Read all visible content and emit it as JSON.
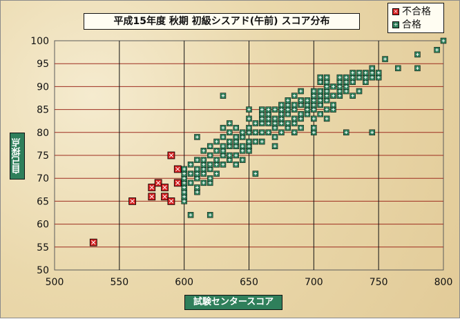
{
  "chart_data": {
    "type": "scatter",
    "title": "平成15年度 秋期 初級シスアド(午前) スコア分布",
    "xlabel": "試験センタースコア",
    "ylabel": "自己採点",
    "xlim": [
      500,
      800
    ],
    "ylim": [
      50,
      100
    ],
    "xticks": [
      500,
      550,
      600,
      650,
      700,
      750,
      800
    ],
    "yticks": [
      50,
      55,
      60,
      65,
      70,
      75,
      80,
      85,
      90,
      95,
      100
    ],
    "grid": true,
    "legend_position": "top-right",
    "series": [
      {
        "name": "不合格",
        "color": "#d42020",
        "points": [
          [
            530,
            56
          ],
          [
            560,
            65
          ],
          [
            575,
            68
          ],
          [
            575,
            66
          ],
          [
            580,
            69
          ],
          [
            585,
            68
          ],
          [
            585,
            66
          ],
          [
            590,
            65
          ],
          [
            590,
            75
          ],
          [
            595,
            72
          ],
          [
            595,
            69
          ]
        ]
      },
      {
        "name": "合格",
        "color": "#2f7f5b",
        "points": [
          [
            600,
            65
          ],
          [
            600,
            66
          ],
          [
            600,
            67
          ],
          [
            600,
            68
          ],
          [
            600,
            69
          ],
          [
            600,
            70
          ],
          [
            600,
            71
          ],
          [
            600,
            72
          ],
          [
            605,
            62
          ],
          [
            605,
            69
          ],
          [
            605,
            71
          ],
          [
            605,
            73
          ],
          [
            610,
            67
          ],
          [
            610,
            68
          ],
          [
            610,
            70
          ],
          [
            610,
            71
          ],
          [
            610,
            72
          ],
          [
            610,
            74
          ],
          [
            610,
            79
          ],
          [
            615,
            69
          ],
          [
            615,
            71
          ],
          [
            615,
            72
          ],
          [
            615,
            73
          ],
          [
            615,
            74
          ],
          [
            615,
            76
          ],
          [
            620,
            62
          ],
          [
            620,
            69
          ],
          [
            620,
            70
          ],
          [
            620,
            72
          ],
          [
            620,
            73
          ],
          [
            620,
            75
          ],
          [
            620,
            77
          ],
          [
            625,
            71
          ],
          [
            625,
            73
          ],
          [
            625,
            74
          ],
          [
            625,
            76
          ],
          [
            625,
            78
          ],
          [
            630,
            73
          ],
          [
            630,
            75
          ],
          [
            630,
            76
          ],
          [
            630,
            77
          ],
          [
            630,
            79
          ],
          [
            630,
            81
          ],
          [
            630,
            88
          ],
          [
            635,
            74
          ],
          [
            635,
            75
          ],
          [
            635,
            77
          ],
          [
            635,
            78
          ],
          [
            635,
            80
          ],
          [
            635,
            82
          ],
          [
            640,
            73
          ],
          [
            640,
            75
          ],
          [
            640,
            77
          ],
          [
            640,
            78
          ],
          [
            640,
            79
          ],
          [
            640,
            81
          ],
          [
            645,
            74
          ],
          [
            645,
            76
          ],
          [
            645,
            77
          ],
          [
            645,
            79
          ],
          [
            645,
            80
          ],
          [
            650,
            76
          ],
          [
            650,
            77
          ],
          [
            650,
            78
          ],
          [
            650,
            80
          ],
          [
            650,
            81
          ],
          [
            650,
            83
          ],
          [
            650,
            85
          ],
          [
            655,
            71
          ],
          [
            655,
            78
          ],
          [
            655,
            80
          ],
          [
            655,
            82
          ],
          [
            660,
            78
          ],
          [
            660,
            80
          ],
          [
            660,
            82
          ],
          [
            660,
            83
          ],
          [
            660,
            84
          ],
          [
            660,
            85
          ],
          [
            665,
            80
          ],
          [
            665,
            82
          ],
          [
            665,
            83
          ],
          [
            665,
            84
          ],
          [
            665,
            85
          ],
          [
            670,
            77
          ],
          [
            670,
            79
          ],
          [
            670,
            81
          ],
          [
            670,
            82
          ],
          [
            670,
            83
          ],
          [
            670,
            85
          ],
          [
            675,
            80
          ],
          [
            675,
            82
          ],
          [
            675,
            83
          ],
          [
            675,
            84
          ],
          [
            675,
            85
          ],
          [
            675,
            86
          ],
          [
            680,
            81
          ],
          [
            680,
            82
          ],
          [
            680,
            84
          ],
          [
            680,
            85
          ],
          [
            680,
            86
          ],
          [
            680,
            87
          ],
          [
            685,
            80
          ],
          [
            685,
            82
          ],
          [
            685,
            83
          ],
          [
            685,
            85
          ],
          [
            685,
            86
          ],
          [
            685,
            88
          ],
          [
            690,
            81
          ],
          [
            690,
            83
          ],
          [
            690,
            84
          ],
          [
            690,
            86
          ],
          [
            690,
            87
          ],
          [
            690,
            89
          ],
          [
            695,
            84
          ],
          [
            695,
            85
          ],
          [
            695,
            86
          ],
          [
            695,
            87
          ],
          [
            700,
            80
          ],
          [
            700,
            81
          ],
          [
            700,
            83
          ],
          [
            700,
            85
          ],
          [
            700,
            86
          ],
          [
            700,
            87
          ],
          [
            700,
            88
          ],
          [
            700,
            89
          ],
          [
            705,
            84
          ],
          [
            705,
            86
          ],
          [
            705,
            87
          ],
          [
            705,
            88
          ],
          [
            705,
            89
          ],
          [
            705,
            91
          ],
          [
            705,
            92
          ],
          [
            710,
            83
          ],
          [
            710,
            85
          ],
          [
            710,
            87
          ],
          [
            710,
            88
          ],
          [
            710,
            89
          ],
          [
            710,
            90
          ],
          [
            710,
            91
          ],
          [
            710,
            92
          ],
          [
            715,
            85
          ],
          [
            715,
            86
          ],
          [
            715,
            88
          ],
          [
            715,
            90
          ],
          [
            720,
            88
          ],
          [
            720,
            89
          ],
          [
            720,
            90
          ],
          [
            720,
            91
          ],
          [
            720,
            92
          ],
          [
            725,
            80
          ],
          [
            725,
            89
          ],
          [
            725,
            90
          ],
          [
            725,
            91
          ],
          [
            725,
            92
          ],
          [
            730,
            88
          ],
          [
            730,
            91
          ],
          [
            730,
            92
          ],
          [
            730,
            93
          ],
          [
            735,
            89
          ],
          [
            735,
            92
          ],
          [
            735,
            93
          ],
          [
            740,
            91
          ],
          [
            740,
            92
          ],
          [
            740,
            93
          ],
          [
            745,
            80
          ],
          [
            745,
            92
          ],
          [
            745,
            93
          ],
          [
            745,
            94
          ],
          [
            750,
            92
          ],
          [
            750,
            93
          ],
          [
            755,
            96
          ],
          [
            765,
            94
          ],
          [
            780,
            94
          ],
          [
            780,
            97
          ],
          [
            795,
            98
          ],
          [
            800,
            100
          ]
        ]
      }
    ]
  }
}
